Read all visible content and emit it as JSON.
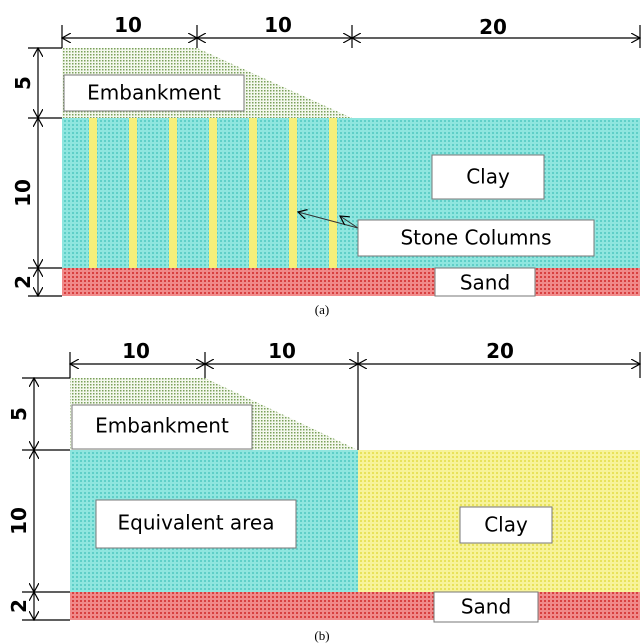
{
  "panel_a": {
    "top_dimensions": [
      10,
      10,
      20
    ],
    "side_dimensions": [
      5,
      10,
      2
    ],
    "labels": {
      "embankment": "Embankment",
      "clay": "Clay",
      "stone_columns": "Stone Columns",
      "sand": "Sand"
    },
    "caption": "(a)"
  },
  "panel_b": {
    "top_dimensions": [
      10,
      10,
      20
    ],
    "side_dimensions": [
      5,
      10,
      2
    ],
    "labels": {
      "embankment": "Embankment",
      "equivalent_area": "Equivalent area",
      "clay": "Clay",
      "sand": "Sand"
    },
    "caption": "(b)"
  }
}
